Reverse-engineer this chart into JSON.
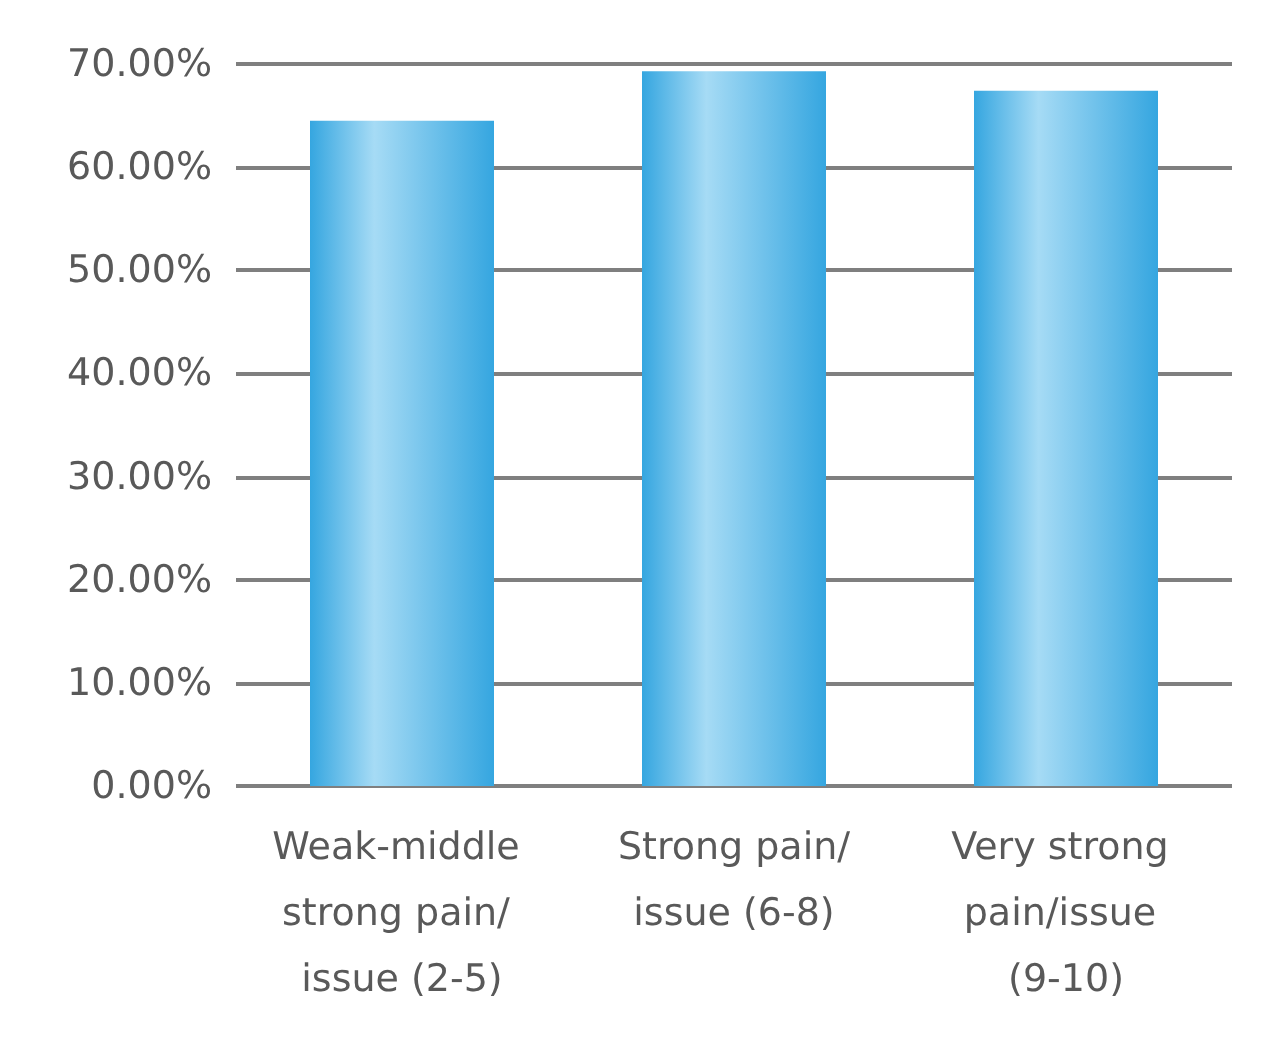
{
  "chart_data": {
    "type": "bar",
    "categories": [
      "Weak-middle strong pain/ issue (2-5)",
      "Strong pain/issue (6-8)",
      "Very strong pain/issue (9-10)"
    ],
    "values": [
      64.5,
      69.3,
      67.4
    ],
    "color": "#35a6e0",
    "ylim": [
      0,
      70
    ],
    "yticks": [
      {
        "value": 0,
        "label": "0.00%"
      },
      {
        "value": 10,
        "label": "10.00%"
      },
      {
        "value": 20,
        "label": "20.00%"
      },
      {
        "value": 30,
        "label": "30.00%"
      },
      {
        "value": 40,
        "label": "40.00%"
      },
      {
        "value": 50,
        "label": "50.00%"
      },
      {
        "value": 60,
        "label": "60.00%"
      },
      {
        "value": 70,
        "label": "70.00%"
      }
    ],
    "grid": "y"
  }
}
